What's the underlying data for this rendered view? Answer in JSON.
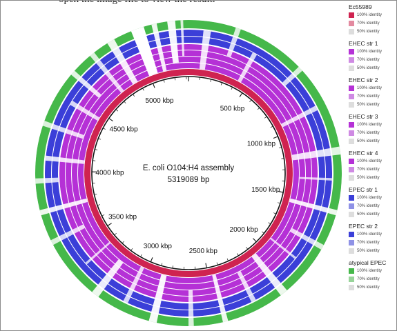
{
  "header_fragment": "open the image file to view the result.",
  "center": {
    "title": "E. coli O104:H4 assembly",
    "length": "5319089 bp"
  },
  "ticks": [
    "500 kbp",
    "1000 kbp",
    "1500 kbp",
    "2000 kbp",
    "2500 kbp",
    "3000 kbp",
    "3500 kbp",
    "4000 kbp",
    "4500 kbp",
    "5000 kbp"
  ],
  "legend": [
    {
      "name": "Ec55989",
      "color": "#cf2350",
      "items": [
        {
          "label": "100% identity",
          "color": "#cf2350"
        },
        {
          "label": "70% identity",
          "color": "#e38aa0"
        },
        {
          "label": "50% identity",
          "color": "#dddddd"
        }
      ]
    },
    {
      "name": "EHEC str 1",
      "color": "#b531d6",
      "items": [
        {
          "label": "100% identity",
          "color": "#b531d6"
        },
        {
          "label": "70% identity",
          "color": "#cf8ae3"
        },
        {
          "label": "50% identity",
          "color": "#dddddd"
        }
      ]
    },
    {
      "name": "EHEC str 2",
      "color": "#b531d6",
      "items": [
        {
          "label": "100% identity",
          "color": "#b531d6"
        },
        {
          "label": "70% identity",
          "color": "#cf8ae3"
        },
        {
          "label": "50% identity",
          "color": "#dddddd"
        }
      ]
    },
    {
      "name": "EHEC str 3",
      "color": "#b531d6",
      "items": [
        {
          "label": "100% identity",
          "color": "#b531d6"
        },
        {
          "label": "70% identity",
          "color": "#cf8ae3"
        },
        {
          "label": "50% identity",
          "color": "#dddddd"
        }
      ]
    },
    {
      "name": "EHEC str 4",
      "color": "#b531d6",
      "items": [
        {
          "label": "100% identity",
          "color": "#b531d6"
        },
        {
          "label": "70% identity",
          "color": "#cf8ae3"
        },
        {
          "label": "50% identity",
          "color": "#dddddd"
        }
      ]
    },
    {
      "name": "EPEC str 1",
      "color": "#3b3fd8",
      "items": [
        {
          "label": "100% identity",
          "color": "#3b3fd8"
        },
        {
          "label": "70% identity",
          "color": "#8f92e6"
        },
        {
          "label": "50% identity",
          "color": "#dddddd"
        }
      ]
    },
    {
      "name": "EPEC str 2",
      "color": "#3b3fd8",
      "items": [
        {
          "label": "100% identity",
          "color": "#3b3fd8"
        },
        {
          "label": "70% identity",
          "color": "#8f92e6"
        },
        {
          "label": "50% identity",
          "color": "#dddddd"
        }
      ]
    },
    {
      "name": "atypical EPEC",
      "color": "#45b84a",
      "items": [
        {
          "label": "100% identity",
          "color": "#45b84a"
        },
        {
          "label": "70% identity",
          "color": "#98d49a"
        },
        {
          "label": "50% identity",
          "color": "#dddddd"
        }
      ]
    }
  ]
}
